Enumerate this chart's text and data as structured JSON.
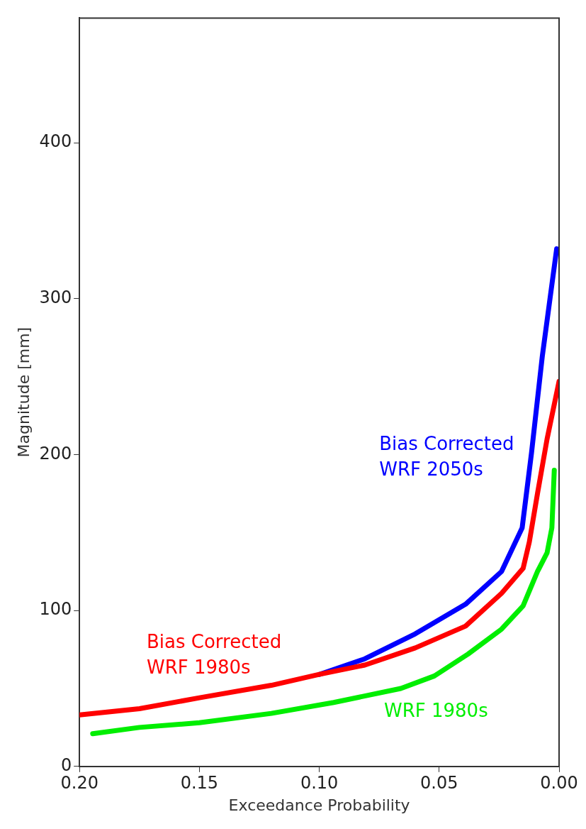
{
  "chart_data": {
    "type": "line",
    "xlabel": "Exceedance Probability",
    "ylabel": "Magnitude [mm]",
    "xlim": [
      0.2,
      0
    ],
    "xticks": [
      {
        "value": 0.2,
        "label": "0.20"
      },
      {
        "value": 0.15,
        "label": "0.15"
      },
      {
        "value": 0.1,
        "label": "0.10"
      },
      {
        "value": 0.05,
        "label": "0.05"
      },
      {
        "value": 0,
        "label": "0.00"
      }
    ],
    "ylim": [
      0,
      480
    ],
    "yticks": [
      0,
      100,
      200,
      300,
      400
    ],
    "grid": false,
    "legend": false,
    "marker": "none",
    "line_style": "solid",
    "series": [
      {
        "name": "Bias Corrected WRF 2050s",
        "color": "#0000ff",
        "x": [
          0.1,
          0.081,
          0.06,
          0.039,
          0.024,
          0.0154,
          0.0115,
          0.007,
          0.001
        ],
        "values": [
          59,
          69,
          85,
          104,
          125,
          153,
          201,
          263,
          332
        ]
      },
      {
        "name": "Bias Corrected WRF 1980s",
        "color": "#ff0000",
        "x": [
          0.2,
          0.175,
          0.15,
          0.12,
          0.1,
          0.081,
          0.06,
          0.039,
          0.024,
          0.015,
          0.0124,
          0.009,
          0.005,
          0.0
        ],
        "values": [
          33,
          37,
          44,
          52,
          59,
          65,
          76,
          90,
          111,
          127,
          144,
          175,
          210,
          247
        ]
      },
      {
        "name": "WRF 1980s",
        "color": "#00ee00",
        "x": [
          0.1945,
          0.175,
          0.15,
          0.12,
          0.094,
          0.066,
          0.052,
          0.038,
          0.024,
          0.015,
          0.009,
          0.005,
          0.003,
          0.002
        ],
        "values": [
          21,
          25,
          28,
          34,
          41,
          50,
          58,
          72,
          88,
          103,
          125,
          137,
          153,
          190
        ]
      }
    ]
  }
}
